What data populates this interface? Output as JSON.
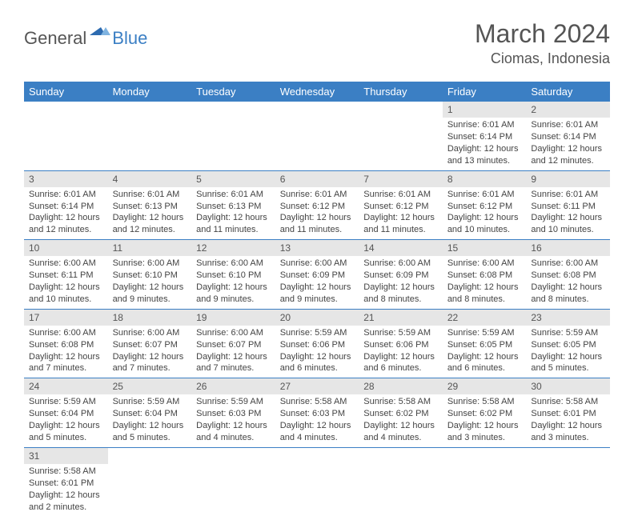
{
  "logo": {
    "general": "General",
    "blue": "Blue"
  },
  "title": "March 2024",
  "location": "Ciomas, Indonesia",
  "colors": {
    "headerBg": "#3b7fc4",
    "dayBg": "#e6e6e6",
    "text": "#444"
  },
  "weekdays": [
    "Sunday",
    "Monday",
    "Tuesday",
    "Wednesday",
    "Thursday",
    "Friday",
    "Saturday"
  ],
  "weeks": [
    [
      null,
      null,
      null,
      null,
      null,
      {
        "n": "1",
        "sr": "Sunrise: 6:01 AM",
        "ss": "Sunset: 6:14 PM",
        "dl": "Daylight: 12 hours and 13 minutes."
      },
      {
        "n": "2",
        "sr": "Sunrise: 6:01 AM",
        "ss": "Sunset: 6:14 PM",
        "dl": "Daylight: 12 hours and 12 minutes."
      }
    ],
    [
      {
        "n": "3",
        "sr": "Sunrise: 6:01 AM",
        "ss": "Sunset: 6:14 PM",
        "dl": "Daylight: 12 hours and 12 minutes."
      },
      {
        "n": "4",
        "sr": "Sunrise: 6:01 AM",
        "ss": "Sunset: 6:13 PM",
        "dl": "Daylight: 12 hours and 12 minutes."
      },
      {
        "n": "5",
        "sr": "Sunrise: 6:01 AM",
        "ss": "Sunset: 6:13 PM",
        "dl": "Daylight: 12 hours and 11 minutes."
      },
      {
        "n": "6",
        "sr": "Sunrise: 6:01 AM",
        "ss": "Sunset: 6:12 PM",
        "dl": "Daylight: 12 hours and 11 minutes."
      },
      {
        "n": "7",
        "sr": "Sunrise: 6:01 AM",
        "ss": "Sunset: 6:12 PM",
        "dl": "Daylight: 12 hours and 11 minutes."
      },
      {
        "n": "8",
        "sr": "Sunrise: 6:01 AM",
        "ss": "Sunset: 6:12 PM",
        "dl": "Daylight: 12 hours and 10 minutes."
      },
      {
        "n": "9",
        "sr": "Sunrise: 6:01 AM",
        "ss": "Sunset: 6:11 PM",
        "dl": "Daylight: 12 hours and 10 minutes."
      }
    ],
    [
      {
        "n": "10",
        "sr": "Sunrise: 6:00 AM",
        "ss": "Sunset: 6:11 PM",
        "dl": "Daylight: 12 hours and 10 minutes."
      },
      {
        "n": "11",
        "sr": "Sunrise: 6:00 AM",
        "ss": "Sunset: 6:10 PM",
        "dl": "Daylight: 12 hours and 9 minutes."
      },
      {
        "n": "12",
        "sr": "Sunrise: 6:00 AM",
        "ss": "Sunset: 6:10 PM",
        "dl": "Daylight: 12 hours and 9 minutes."
      },
      {
        "n": "13",
        "sr": "Sunrise: 6:00 AM",
        "ss": "Sunset: 6:09 PM",
        "dl": "Daylight: 12 hours and 9 minutes."
      },
      {
        "n": "14",
        "sr": "Sunrise: 6:00 AM",
        "ss": "Sunset: 6:09 PM",
        "dl": "Daylight: 12 hours and 8 minutes."
      },
      {
        "n": "15",
        "sr": "Sunrise: 6:00 AM",
        "ss": "Sunset: 6:08 PM",
        "dl": "Daylight: 12 hours and 8 minutes."
      },
      {
        "n": "16",
        "sr": "Sunrise: 6:00 AM",
        "ss": "Sunset: 6:08 PM",
        "dl": "Daylight: 12 hours and 8 minutes."
      }
    ],
    [
      {
        "n": "17",
        "sr": "Sunrise: 6:00 AM",
        "ss": "Sunset: 6:08 PM",
        "dl": "Daylight: 12 hours and 7 minutes."
      },
      {
        "n": "18",
        "sr": "Sunrise: 6:00 AM",
        "ss": "Sunset: 6:07 PM",
        "dl": "Daylight: 12 hours and 7 minutes."
      },
      {
        "n": "19",
        "sr": "Sunrise: 6:00 AM",
        "ss": "Sunset: 6:07 PM",
        "dl": "Daylight: 12 hours and 7 minutes."
      },
      {
        "n": "20",
        "sr": "Sunrise: 5:59 AM",
        "ss": "Sunset: 6:06 PM",
        "dl": "Daylight: 12 hours and 6 minutes."
      },
      {
        "n": "21",
        "sr": "Sunrise: 5:59 AM",
        "ss": "Sunset: 6:06 PM",
        "dl": "Daylight: 12 hours and 6 minutes."
      },
      {
        "n": "22",
        "sr": "Sunrise: 5:59 AM",
        "ss": "Sunset: 6:05 PM",
        "dl": "Daylight: 12 hours and 6 minutes."
      },
      {
        "n": "23",
        "sr": "Sunrise: 5:59 AM",
        "ss": "Sunset: 6:05 PM",
        "dl": "Daylight: 12 hours and 5 minutes."
      }
    ],
    [
      {
        "n": "24",
        "sr": "Sunrise: 5:59 AM",
        "ss": "Sunset: 6:04 PM",
        "dl": "Daylight: 12 hours and 5 minutes."
      },
      {
        "n": "25",
        "sr": "Sunrise: 5:59 AM",
        "ss": "Sunset: 6:04 PM",
        "dl": "Daylight: 12 hours and 5 minutes."
      },
      {
        "n": "26",
        "sr": "Sunrise: 5:59 AM",
        "ss": "Sunset: 6:03 PM",
        "dl": "Daylight: 12 hours and 4 minutes."
      },
      {
        "n": "27",
        "sr": "Sunrise: 5:58 AM",
        "ss": "Sunset: 6:03 PM",
        "dl": "Daylight: 12 hours and 4 minutes."
      },
      {
        "n": "28",
        "sr": "Sunrise: 5:58 AM",
        "ss": "Sunset: 6:02 PM",
        "dl": "Daylight: 12 hours and 4 minutes."
      },
      {
        "n": "29",
        "sr": "Sunrise: 5:58 AM",
        "ss": "Sunset: 6:02 PM",
        "dl": "Daylight: 12 hours and 3 minutes."
      },
      {
        "n": "30",
        "sr": "Sunrise: 5:58 AM",
        "ss": "Sunset: 6:01 PM",
        "dl": "Daylight: 12 hours and 3 minutes."
      }
    ],
    [
      {
        "n": "31",
        "sr": "Sunrise: 5:58 AM",
        "ss": "Sunset: 6:01 PM",
        "dl": "Daylight: 12 hours and 2 minutes."
      },
      null,
      null,
      null,
      null,
      null,
      null
    ]
  ]
}
